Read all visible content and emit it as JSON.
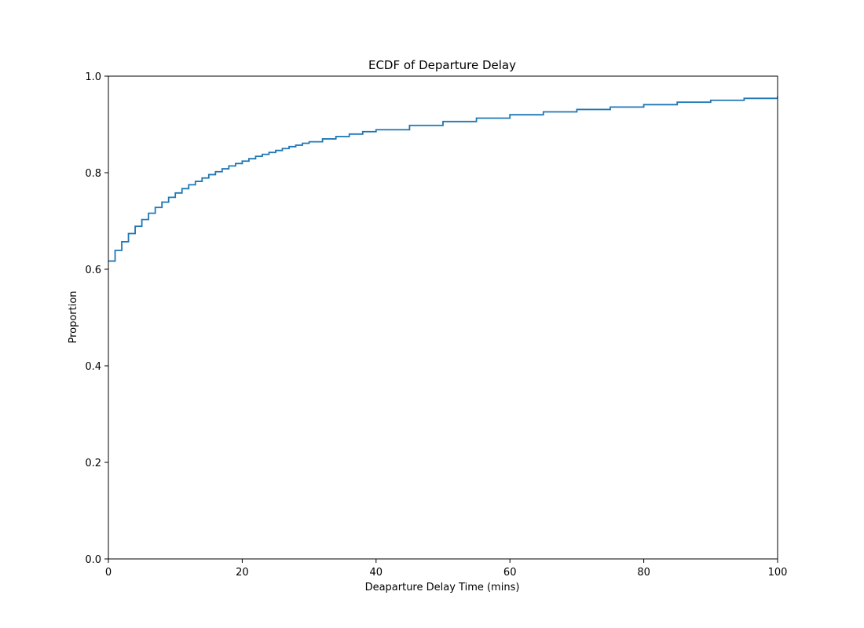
{
  "chart_data": {
    "type": "line",
    "step": true,
    "title": "ECDF of Departure Delay",
    "xlabel": "Deaparture Delay Time (mins)",
    "ylabel": "Proportion",
    "xlim": [
      0,
      100
    ],
    "ylim": [
      0,
      1
    ],
    "xticks": [
      0,
      20,
      40,
      60,
      80,
      100
    ],
    "yticks": [
      0.0,
      0.2,
      0.4,
      0.6,
      0.8,
      1.0
    ],
    "xtick_labels": [
      "0",
      "20",
      "40",
      "60",
      "80",
      "100"
    ],
    "ytick_labels": [
      "0.0",
      "0.2",
      "0.4",
      "0.6",
      "0.8",
      "1.0"
    ],
    "grid": false,
    "line_color": "#1f77b4",
    "series": [
      {
        "x": [
          0,
          1,
          2,
          3,
          4,
          5,
          6,
          7,
          8,
          9,
          10,
          11,
          12,
          13,
          14,
          15,
          16,
          17,
          18,
          19,
          20,
          21,
          22,
          23,
          24,
          25,
          26,
          27,
          28,
          29,
          30,
          32,
          34,
          36,
          38,
          40,
          45,
          50,
          55,
          60,
          65,
          70,
          75,
          80,
          85,
          90,
          95,
          100
        ],
        "y": [
          0.617,
          0.639,
          0.657,
          0.674,
          0.689,
          0.703,
          0.716,
          0.728,
          0.739,
          0.749,
          0.758,
          0.767,
          0.775,
          0.782,
          0.789,
          0.796,
          0.802,
          0.808,
          0.814,
          0.819,
          0.824,
          0.829,
          0.834,
          0.838,
          0.842,
          0.846,
          0.85,
          0.854,
          0.857,
          0.861,
          0.864,
          0.87,
          0.875,
          0.88,
          0.885,
          0.889,
          0.898,
          0.906,
          0.913,
          0.92,
          0.926,
          0.931,
          0.936,
          0.941,
          0.946,
          0.95,
          0.954,
          0.959
        ]
      }
    ]
  }
}
